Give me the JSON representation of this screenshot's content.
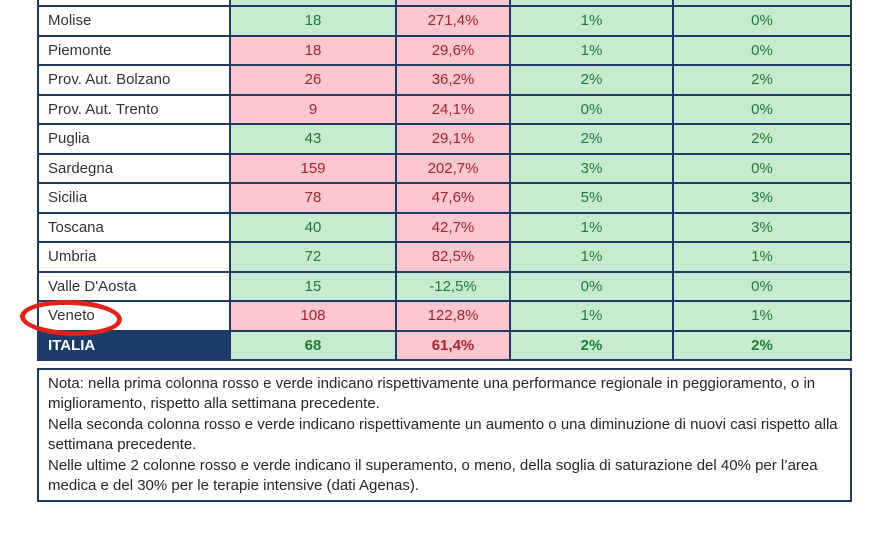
{
  "colors": {
    "good_fill": "#C7EBD1",
    "good_text": "#1E7B34",
    "bad_fill": "#F9C7CD",
    "bad_text": "#A4232F",
    "total_row_bg": "#1B3C6B",
    "total_row_text": "#FFFFFF",
    "grid_border": "#1F3B63",
    "annotation_red": "#DF2319"
  },
  "table": {
    "partial_top_row": {
      "c1": "plain",
      "c2": "good",
      "c3": "bad",
      "c4": "good",
      "c5": "good"
    },
    "rows": [
      {
        "region": "Molise",
        "cells": [
          {
            "value": "18",
            "status": "good"
          },
          {
            "value": "271,4%",
            "status": "bad"
          },
          {
            "value": "1%",
            "status": "good"
          },
          {
            "value": "0%",
            "status": "good"
          }
        ]
      },
      {
        "region": "Piemonte",
        "cells": [
          {
            "value": "18",
            "status": "bad"
          },
          {
            "value": "29,6%",
            "status": "bad"
          },
          {
            "value": "1%",
            "status": "good"
          },
          {
            "value": "0%",
            "status": "good"
          }
        ]
      },
      {
        "region": "Prov. Aut. Bolzano",
        "cells": [
          {
            "value": "26",
            "status": "bad"
          },
          {
            "value": "36,2%",
            "status": "bad"
          },
          {
            "value": "2%",
            "status": "good"
          },
          {
            "value": "2%",
            "status": "good"
          }
        ]
      },
      {
        "region": "Prov. Aut. Trento",
        "cells": [
          {
            "value": "9",
            "status": "bad"
          },
          {
            "value": "24,1%",
            "status": "bad"
          },
          {
            "value": "0%",
            "status": "good"
          },
          {
            "value": "0%",
            "status": "good"
          }
        ]
      },
      {
        "region": "Puglia",
        "cells": [
          {
            "value": "43",
            "status": "good"
          },
          {
            "value": "29,1%",
            "status": "bad"
          },
          {
            "value": "2%",
            "status": "good"
          },
          {
            "value": "2%",
            "status": "good"
          }
        ]
      },
      {
        "region": "Sardegna",
        "cells": [
          {
            "value": "159",
            "status": "bad"
          },
          {
            "value": "202,7%",
            "status": "bad"
          },
          {
            "value": "3%",
            "status": "good"
          },
          {
            "value": "0%",
            "status": "good"
          }
        ]
      },
      {
        "region": "Sicilia",
        "cells": [
          {
            "value": "78",
            "status": "bad"
          },
          {
            "value": "47,6%",
            "status": "bad"
          },
          {
            "value": "5%",
            "status": "good"
          },
          {
            "value": "3%",
            "status": "good"
          }
        ]
      },
      {
        "region": "Toscana",
        "cells": [
          {
            "value": "40",
            "status": "good"
          },
          {
            "value": "42,7%",
            "status": "bad"
          },
          {
            "value": "1%",
            "status": "good"
          },
          {
            "value": "3%",
            "status": "good"
          }
        ]
      },
      {
        "region": "Umbria",
        "cells": [
          {
            "value": "72",
            "status": "good"
          },
          {
            "value": "82,5%",
            "status": "bad"
          },
          {
            "value": "1%",
            "status": "good"
          },
          {
            "value": "1%",
            "status": "good"
          }
        ]
      },
      {
        "region": "Valle D'Aosta",
        "cells": [
          {
            "value": "15",
            "status": "good"
          },
          {
            "value": "-12,5%",
            "status": "good"
          },
          {
            "value": "0%",
            "status": "good"
          },
          {
            "value": "0%",
            "status": "good"
          }
        ]
      },
      {
        "region": "Veneto",
        "cells": [
          {
            "value": "108",
            "status": "bad"
          },
          {
            "value": "122,8%",
            "status": "bad"
          },
          {
            "value": "1%",
            "status": "good"
          },
          {
            "value": "1%",
            "status": "good"
          }
        ]
      },
      {
        "region": "ITALIA",
        "cells": [
          {
            "value": "68",
            "status": "good"
          },
          {
            "value": "61,4%",
            "status": "bad"
          },
          {
            "value": "2%",
            "status": "good"
          },
          {
            "value": "2%",
            "status": "good"
          }
        ]
      }
    ]
  },
  "annotation": {
    "circled_region": "Veneto"
  },
  "note": {
    "paragraphs": [
      "Nota: nella prima colonna rosso e verde indicano rispettivamente una performance regionale in peggioramento, o in miglioramento, rispetto alla settimana precedente.",
      "Nella seconda colonna rosso e verde indicano rispettivamente un aumento o una diminuzione di nuovi casi rispetto alla settimana precedente.",
      "Nelle ultime 2 colonne rosso e verde indicano il superamento, o meno, della soglia di saturazione del 40% per l’area medica e del 30% per le terapie intensive (dati Agenas)."
    ]
  }
}
